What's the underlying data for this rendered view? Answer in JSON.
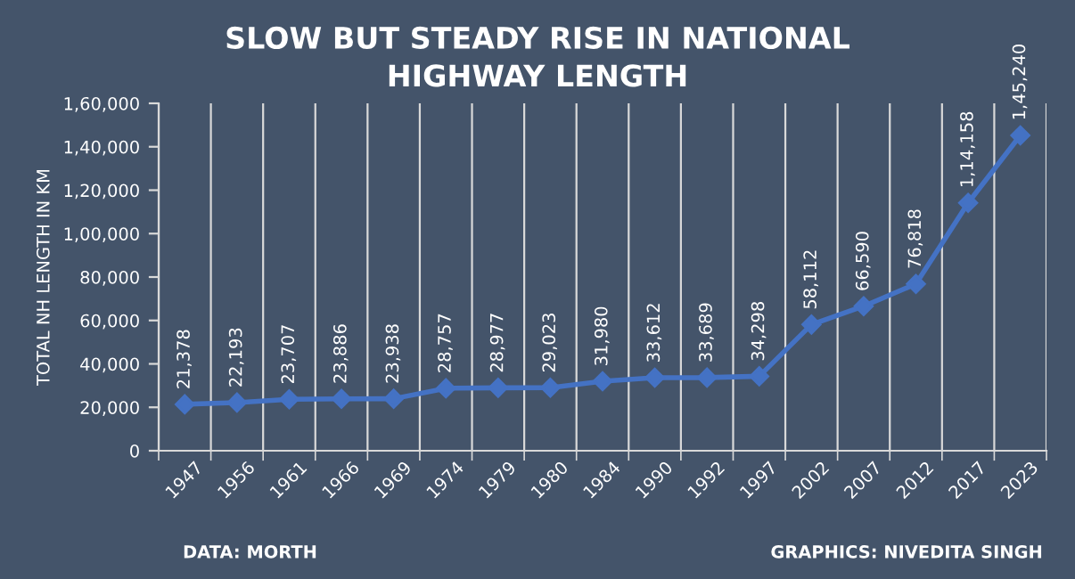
{
  "chart_data": {
    "type": "line",
    "title": "SLOW BUT STEADY RISE IN NATIONAL\nHIGHWAY LENGTH",
    "ylabel": "TOTAL NH LENGTH IN KM",
    "categories": [
      "1947",
      "1956",
      "1961",
      "1966",
      "1969",
      "1974",
      "1979",
      "1980",
      "1984",
      "1990",
      "1992",
      "1997",
      "2002",
      "2007",
      "2012",
      "2017",
      "2023"
    ],
    "series": [
      {
        "color": "#4472c4",
        "values": [
          21378,
          22193,
          23707,
          23886,
          23938,
          28757,
          28977,
          29023,
          31980,
          33612,
          33689,
          34298,
          58112,
          66590,
          76818,
          114158,
          145240
        ]
      }
    ],
    "value_labels": [
      "21,378",
      "22,193",
      "23,707",
      "23,886",
      "23,938",
      "28,757",
      "28,977",
      "29,023",
      "31,980",
      "33,612",
      "33,689",
      "34,298",
      "58,112",
      "66,590",
      "76,818",
      "1,14,158",
      "1,45,240"
    ],
    "ylim": [
      0,
      160000
    ],
    "yticks": [
      0,
      {
        "value": 20000,
        "label": "20,000"
      },
      {
        "value": 40000,
        "label": "40,000"
      },
      {
        "value": 60000,
        "label": "60,000"
      },
      {
        "value": 80000,
        "label": "80,000"
      },
      {
        "value": 100000,
        "label": "1,00,000"
      },
      {
        "value": 120000,
        "label": "1,20,000"
      },
      {
        "value": 140000,
        "label": "1,40,000"
      },
      {
        "value": 160000,
        "label": "1,60,000"
      }
    ],
    "grid": "x",
    "marker": "diamond",
    "line_style": "solid",
    "annotations": [
      "DATA: MORTH",
      "GRAPHICS: NIVEDITA SINGH"
    ]
  }
}
